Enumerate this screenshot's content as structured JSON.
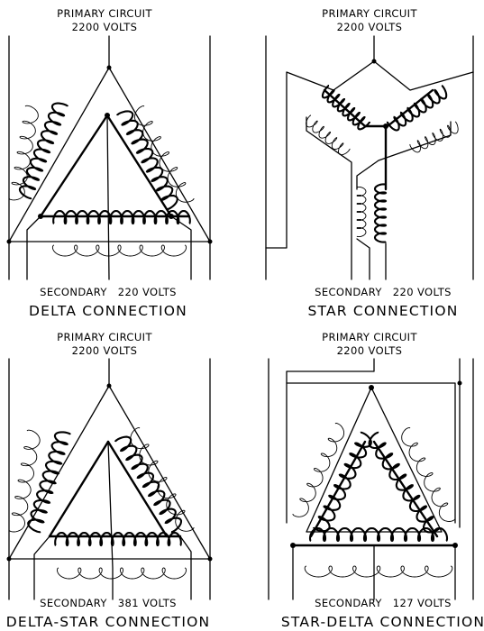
{
  "panels": [
    {
      "id": "delta",
      "primary_title": "PRIMARY CIRCUIT",
      "primary_voltage": "2200 VOLTS",
      "secondary_label": "SECONDARY",
      "secondary_voltage": "220 VOLTS",
      "connection_name": "DELTA CONNECTION"
    },
    {
      "id": "star",
      "primary_title": "PRIMARY CIRCUIT",
      "primary_voltage": "2200 VOLTS",
      "secondary_label": "SECONDARY",
      "secondary_voltage": "220 VOLTS",
      "connection_name": "STAR CONNECTION"
    },
    {
      "id": "delta-star",
      "primary_title": "PRIMARY CIRCUIT",
      "primary_voltage": "2200 VOLTS",
      "secondary_label": "SECONDARY",
      "secondary_voltage": "381 VOLTS",
      "connection_name": "DELTA-STAR CONNECTION"
    },
    {
      "id": "star-delta",
      "primary_title": "PRIMARY CIRCUIT",
      "primary_voltage": "2200 VOLTS",
      "secondary_label": "SECONDARY",
      "secondary_voltage": "127 VOLTS",
      "connection_name": "STAR-DELTA CONNECTION"
    }
  ]
}
